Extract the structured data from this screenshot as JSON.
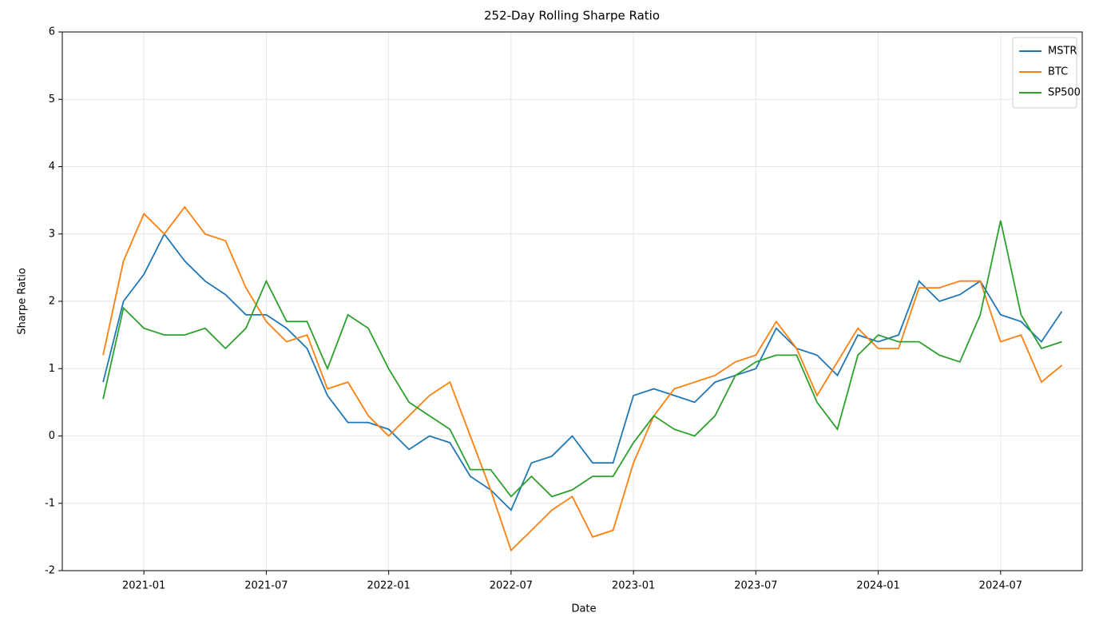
{
  "chart_data": {
    "type": "line",
    "title": "252-Day Rolling Sharpe Ratio",
    "x_label": "Date",
    "y_label": "Sharpe Ratio",
    "x": [
      "2020-11",
      "2020-12",
      "2021-01",
      "2021-02",
      "2021-03",
      "2021-04",
      "2021-05",
      "2021-06",
      "2021-07",
      "2021-08",
      "2021-09",
      "2021-10",
      "2021-11",
      "2021-12",
      "2022-01",
      "2022-02",
      "2022-03",
      "2022-04",
      "2022-05",
      "2022-06",
      "2022-07",
      "2022-08",
      "2022-09",
      "2022-10",
      "2022-11",
      "2022-12",
      "2023-01",
      "2023-02",
      "2023-03",
      "2023-04",
      "2023-05",
      "2023-06",
      "2023-07",
      "2023-08",
      "2023-09",
      "2023-10",
      "2023-11",
      "2023-12",
      "2024-01",
      "2024-02",
      "2024-03",
      "2024-04",
      "2024-05",
      "2024-06",
      "2024-07",
      "2024-08",
      "2024-09",
      "2024-10"
    ],
    "series": [
      {
        "name": "MSTR",
        "color": "#1f77b4",
        "values": [
          0.8,
          2.0,
          2.4,
          3.0,
          2.6,
          2.3,
          2.1,
          1.8,
          1.8,
          1.6,
          1.3,
          0.6,
          0.2,
          0.2,
          0.1,
          -0.2,
          0.0,
          -0.1,
          -0.6,
          -0.8,
          -1.1,
          -0.4,
          -0.3,
          0.0,
          -0.4,
          -0.4,
          0.6,
          0.7,
          0.6,
          0.5,
          0.8,
          0.9,
          1.0,
          1.6,
          1.3,
          1.2,
          0.9,
          1.5,
          1.4,
          1.5,
          2.3,
          2.0,
          2.1,
          2.3,
          1.8,
          1.7,
          1.4,
          1.85
        ]
      },
      {
        "name": "BTC",
        "color": "#ff7f0e",
        "values": [
          1.2,
          2.6,
          3.3,
          3.0,
          3.4,
          3.0,
          2.9,
          2.2,
          1.7,
          1.4,
          1.5,
          0.7,
          0.8,
          0.3,
          0.0,
          0.3,
          0.6,
          0.8,
          0.0,
          -0.8,
          -1.7,
          -1.4,
          -1.1,
          -0.9,
          -1.5,
          -1.4,
          -0.4,
          0.3,
          0.7,
          0.8,
          0.9,
          1.1,
          1.2,
          1.7,
          1.3,
          0.6,
          1.1,
          1.6,
          1.3,
          1.3,
          2.2,
          2.2,
          2.3,
          2.3,
          1.4,
          1.5,
          0.8,
          1.05
        ]
      },
      {
        "name": "SP500",
        "color": "#2ca02c",
        "values": [
          0.55,
          1.9,
          1.6,
          1.5,
          1.5,
          1.6,
          1.3,
          1.6,
          2.3,
          1.7,
          1.7,
          1.0,
          1.8,
          1.6,
          1.0,
          0.5,
          0.3,
          0.1,
          -0.5,
          -0.5,
          -0.9,
          -0.6,
          -0.9,
          -0.8,
          -0.6,
          -0.6,
          -0.1,
          0.3,
          0.1,
          0.0,
          0.3,
          0.9,
          1.1,
          1.2,
          1.2,
          0.5,
          0.1,
          1.2,
          1.5,
          1.4,
          1.4,
          1.2,
          1.1,
          1.8,
          3.2,
          1.8,
          1.3,
          1.4
        ]
      }
    ],
    "xlim": [
      "2020-09",
      "2024-11"
    ],
    "xticks": [
      "2021-01",
      "2021-07",
      "2022-01",
      "2022-07",
      "2023-01",
      "2023-07",
      "2024-01",
      "2024-07"
    ],
    "ylim": [
      -2,
      6
    ],
    "yticks": [
      -2,
      -1,
      0,
      1,
      2,
      3,
      4,
      5,
      6
    ],
    "grid": true,
    "legend": "upper right"
  }
}
